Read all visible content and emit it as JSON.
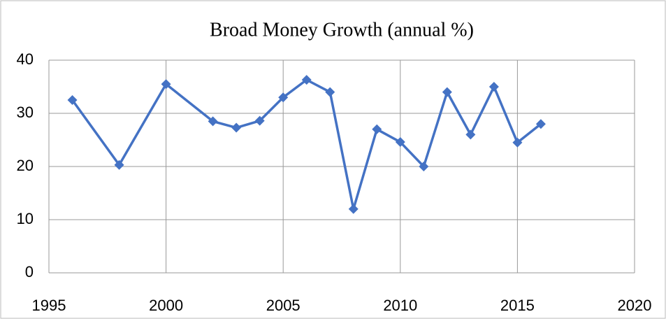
{
  "chart_data": {
    "type": "line",
    "title": "Broad Money Growth (annual %)",
    "x": [
      1996,
      1998,
      2000,
      2002,
      2003,
      2004,
      2005,
      2006,
      2007,
      2008,
      2009,
      2010,
      2011,
      2012,
      2013,
      2014,
      2015,
      2016
    ],
    "series": [
      {
        "name": "Broad Money Growth",
        "color": "#4472c4",
        "values": [
          32.5,
          20.3,
          35.5,
          28.5,
          27.3,
          28.6,
          33,
          36.3,
          34,
          12,
          27,
          24.6,
          20,
          34,
          26,
          35,
          24.5,
          28
        ]
      }
    ],
    "xlim": [
      1995,
      2020
    ],
    "xticks": [
      1995,
      2000,
      2005,
      2010,
      2015,
      2020
    ],
    "ylim": [
      0,
      40
    ],
    "yticks": [
      0,
      10,
      20,
      30,
      40
    ],
    "grid": true
  }
}
